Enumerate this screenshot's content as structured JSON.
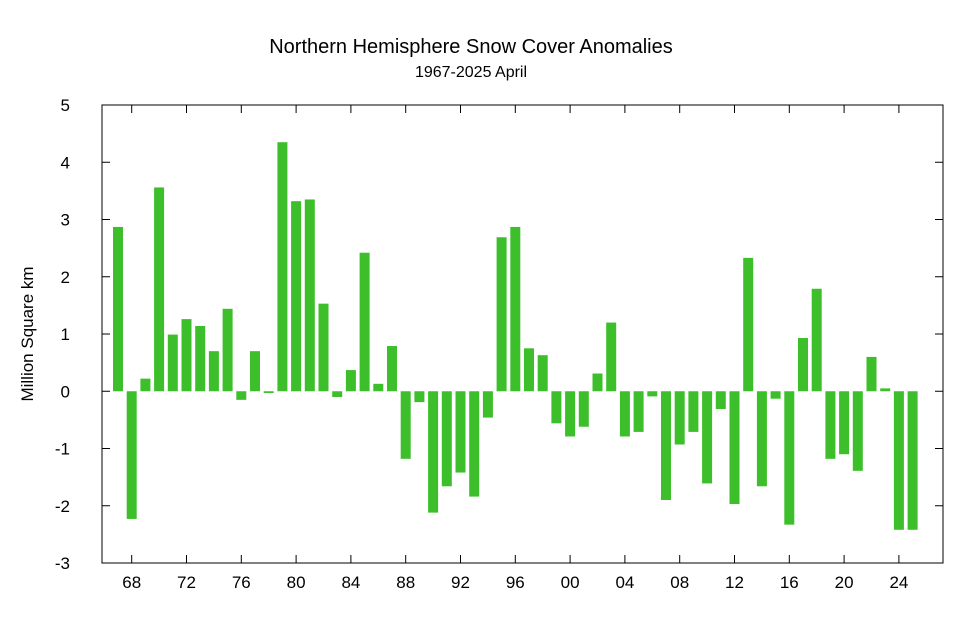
{
  "chart_data": {
    "type": "bar",
    "title": "Northern Hemisphere Snow Cover Anomalies",
    "subtitle": "1967-2025 April",
    "xlabel": "",
    "ylabel": "Million Square km",
    "ylim": [
      -3,
      5
    ],
    "yticks": [
      "5",
      "4",
      "3",
      "2",
      "1",
      "0",
      "-1",
      "-2",
      "-3"
    ],
    "ytick_values": [
      5,
      4,
      3,
      2,
      1,
      0,
      -1,
      -2,
      -3
    ],
    "xtick_labels": [
      "68",
      "72",
      "76",
      "80",
      "84",
      "88",
      "92",
      "96",
      "00",
      "04",
      "08",
      "12",
      "16",
      "20",
      "24"
    ],
    "xtick_years": [
      1968,
      1972,
      1976,
      1980,
      1984,
      1988,
      1992,
      1996,
      2000,
      2004,
      2008,
      2012,
      2016,
      2020,
      2024
    ],
    "bar_color": "#3cbf2a",
    "grid": false,
    "legend": "none",
    "x": [
      1967,
      1968,
      1969,
      1970,
      1971,
      1972,
      1973,
      1974,
      1975,
      1976,
      1977,
      1978,
      1979,
      1980,
      1981,
      1982,
      1983,
      1984,
      1985,
      1986,
      1987,
      1988,
      1989,
      1990,
      1991,
      1992,
      1993,
      1994,
      1995,
      1996,
      1997,
      1998,
      1999,
      2000,
      2001,
      2002,
      2003,
      2004,
      2005,
      2006,
      2007,
      2008,
      2009,
      2010,
      2011,
      2012,
      2013,
      2014,
      2015,
      2016,
      2017,
      2018,
      2019,
      2020,
      2021,
      2022,
      2023,
      2024,
      2025
    ],
    "values": [
      2.87,
      -2.23,
      0.22,
      3.56,
      0.99,
      1.26,
      1.14,
      0.7,
      1.44,
      -0.15,
      0.7,
      -0.03,
      4.35,
      3.32,
      3.35,
      1.53,
      -0.1,
      0.37,
      2.42,
      0.13,
      0.79,
      -1.18,
      -0.19,
      -2.12,
      -1.66,
      -1.42,
      -1.84,
      -0.46,
      2.69,
      2.87,
      0.75,
      0.63,
      -0.56,
      -0.79,
      -0.62,
      0.31,
      1.2,
      -0.79,
      -0.71,
      -0.09,
      -1.9,
      -0.93,
      -0.71,
      -1.61,
      -0.31,
      -1.97,
      2.33,
      -1.66,
      -0.13,
      -2.33,
      0.93,
      1.79,
      -1.18,
      -1.1,
      -1.39,
      0.6,
      0.05,
      -2.42,
      -2.42
    ]
  }
}
